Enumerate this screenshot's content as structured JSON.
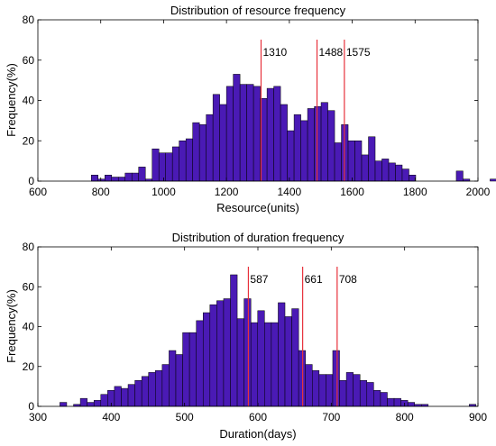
{
  "chart_data": [
    {
      "type": "bar",
      "title": "Distribution of resource frequency",
      "xlabel": "Resource(units)",
      "ylabel": "Frequency(%)",
      "xlim": [
        600,
        2000
      ],
      "ylim": [
        0,
        80
      ],
      "xticks": [
        600,
        800,
        1000,
        1200,
        1400,
        1600,
        1800,
        2000
      ],
      "yticks": [
        0,
        20,
        40,
        60,
        80
      ],
      "bar_color": "#4a1ab5",
      "bin_start": 770,
      "bin_width": 21.5,
      "values": [
        3,
        1,
        3,
        2,
        2,
        4,
        4,
        7,
        1,
        16,
        14,
        14,
        17,
        20,
        21,
        29,
        28,
        33,
        43,
        38,
        47,
        53,
        48,
        48,
        47,
        41,
        46,
        47,
        38,
        25,
        33,
        30,
        36,
        37,
        39,
        35,
        19,
        28,
        20,
        20,
        13,
        22,
        10,
        11,
        9,
        8,
        6,
        3,
        0,
        0,
        0,
        0,
        0,
        0,
        5,
        1,
        0,
        0,
        0,
        1,
        2
      ],
      "markers": [
        {
          "value": 1310,
          "label": "1310"
        },
        {
          "value": 1488,
          "label": "1488"
        },
        {
          "value": 1575,
          "label": "1575"
        }
      ],
      "marker_color": "#e8323c"
    },
    {
      "type": "bar",
      "title": "Distribution of duration frequency",
      "xlabel": "Duration(days)",
      "ylabel": "Frequency(%)",
      "xlim": [
        300,
        900
      ],
      "ylim": [
        0,
        80
      ],
      "xticks": [
        300,
        400,
        500,
        600,
        700,
        800,
        900
      ],
      "yticks": [
        0,
        20,
        40,
        60,
        80
      ],
      "bar_color": "#4a1ab5",
      "bin_start": 330,
      "bin_width": 9.3,
      "values": [
        2,
        0,
        1,
        4,
        2,
        3,
        6,
        8,
        10,
        9,
        11,
        13,
        15,
        17,
        18,
        21,
        28,
        26,
        37,
        37,
        43,
        47,
        51,
        53,
        54,
        66,
        44,
        54,
        42,
        48,
        42,
        42,
        52,
        45,
        49,
        28,
        21,
        18,
        16,
        16,
        28,
        13,
        17,
        16,
        13,
        12,
        8,
        7,
        4,
        4,
        3,
        2,
        1,
        1,
        0,
        0,
        0,
        0,
        0,
        0,
        1
      ],
      "markers": [
        {
          "value": 587,
          "label": "587"
        },
        {
          "value": 661,
          "label": "661"
        },
        {
          "value": 708,
          "label": "708"
        }
      ],
      "marker_color": "#e8323c"
    }
  ]
}
